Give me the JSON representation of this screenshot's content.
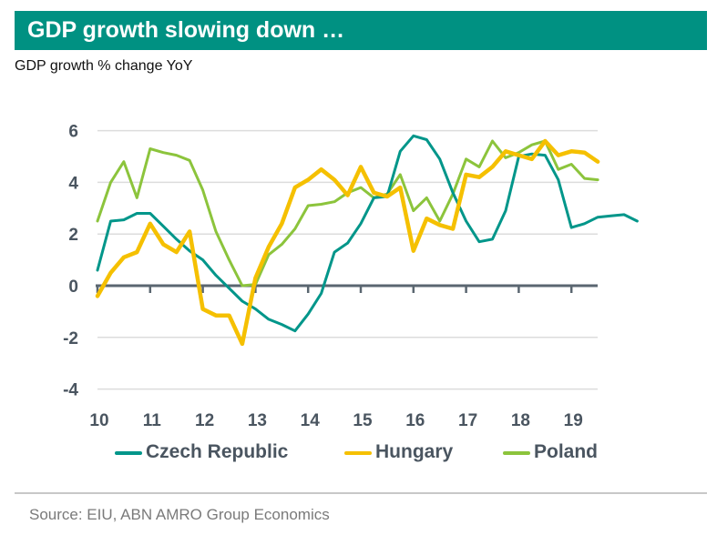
{
  "header": {
    "title": "GDP growth slowing down …",
    "subtitle": "GDP growth % change YoY"
  },
  "footer": {
    "source": "Source: EIU, ABN AMRO Group Economics"
  },
  "colors": {
    "title_bar": "#009182",
    "czech": "#00968A",
    "hungary": "#F5C000",
    "poland": "#8CC43C",
    "axis": "#5A6670",
    "grid": "#DCDCDC",
    "tick_label": "#4A5560"
  },
  "chart_data": {
    "type": "line",
    "title": "GDP growth slowing down …",
    "subtitle": "GDP growth % change YoY",
    "xlabel": "",
    "ylabel": "",
    "x_start_year": 10,
    "x_step": "quarter",
    "x_ticks": [
      "10",
      "11",
      "12",
      "13",
      "14",
      "15",
      "16",
      "17",
      "18",
      "19"
    ],
    "y_ticks": [
      6,
      4,
      2,
      0,
      -2,
      -4
    ],
    "ylim": [
      -4,
      6
    ],
    "grid": true,
    "legend_position": "bottom",
    "series": [
      {
        "name": "Czech Republic",
        "key": "czech",
        "values": [
          0.6,
          2.5,
          2.55,
          2.8,
          2.8,
          2.3,
          1.8,
          1.35,
          1.0,
          0.4,
          -0.1,
          -0.6,
          -0.9,
          -1.3,
          -1.5,
          -1.75,
          -1.1,
          -0.3,
          1.3,
          1.65,
          2.4,
          3.4,
          3.45,
          5.2,
          5.8,
          5.65,
          4.9,
          3.6,
          2.5,
          1.7,
          1.8,
          2.9,
          5.0,
          5.1,
          5.05,
          4.1,
          2.25,
          2.4,
          2.65,
          2.7,
          2.75,
          2.5
        ]
      },
      {
        "name": "Hungary",
        "key": "hungary",
        "values": [
          -0.4,
          0.5,
          1.1,
          1.3,
          2.4,
          1.6,
          1.3,
          2.1,
          -0.9,
          -1.15,
          -1.15,
          -2.25,
          0.3,
          1.5,
          2.4,
          3.8,
          4.1,
          4.5,
          4.1,
          3.5,
          4.6,
          3.6,
          3.45,
          3.8,
          1.35,
          2.6,
          2.35,
          2.2,
          4.3,
          4.2,
          4.6,
          5.2,
          5.05,
          4.9,
          5.6,
          5.05,
          5.2,
          5.15,
          4.8
        ]
      },
      {
        "name": "Poland",
        "key": "poland",
        "values": [
          2.5,
          4.0,
          4.8,
          3.4,
          5.3,
          5.15,
          5.05,
          4.85,
          3.7,
          2.1,
          1.0,
          0.0,
          0.05,
          1.2,
          1.6,
          2.2,
          3.1,
          3.15,
          3.25,
          3.6,
          3.8,
          3.4,
          3.55,
          4.3,
          2.9,
          3.4,
          2.5,
          3.55,
          4.9,
          4.6,
          5.6,
          4.95,
          5.15,
          5.45,
          5.6,
          4.5,
          4.7,
          4.15,
          4.1
        ]
      }
    ]
  }
}
